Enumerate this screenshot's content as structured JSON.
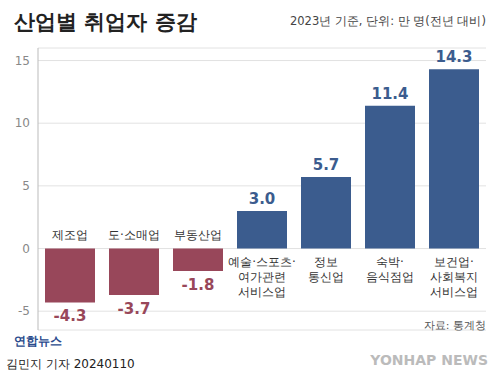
{
  "chart_data": {
    "type": "bar",
    "title": "산업별 취업자 증감",
    "subtitle": "2023년 기준, 단위: 만 명(전년 대비)",
    "categories": [
      "제조업",
      "도·소매업",
      "부동산업",
      "예술·스포츠·\n여가관련\n서비스업",
      "정보\n통신업",
      "숙박·\n음식점업",
      "보건업·\n사회복지\n서비스업"
    ],
    "values": [
      -4.3,
      -3.7,
      -1.8,
      3.0,
      5.7,
      11.4,
      14.3
    ],
    "value_labels": [
      "-4.3",
      "-3.7",
      "-1.8",
      "3.0",
      "5.7",
      "11.4",
      "14.3"
    ],
    "colors": [
      "#98475a",
      "#98475a",
      "#98475a",
      "#3b5c8e",
      "#3b5c8e",
      "#3b5c8e",
      "#3b5c8e"
    ],
    "ylim": [
      -6.5,
      16
    ],
    "yticks": [
      -5,
      0,
      5,
      10,
      15
    ],
    "grid": true,
    "data_labels": true,
    "source": "자료: 통계청",
    "annotations": [
      "연합뉴스",
      "김민지 기자 20240110",
      "YONHAP NEWS"
    ]
  }
}
